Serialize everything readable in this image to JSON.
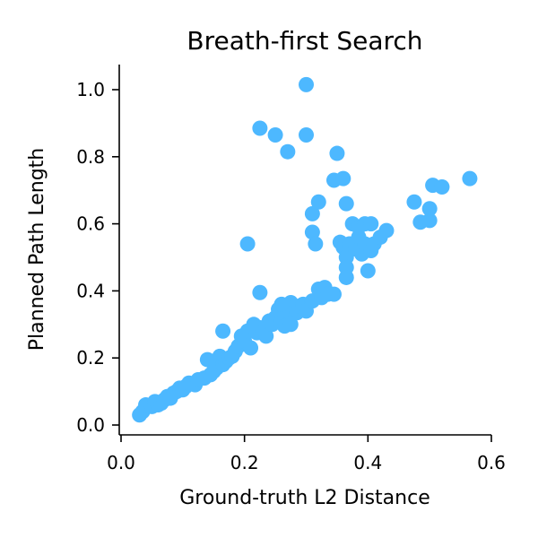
{
  "chart_data": {
    "type": "scatter",
    "title": "Breath-first Search",
    "xlabel": "Ground-truth L2 Distance",
    "ylabel": "Planned Path Length",
    "xlim": [
      0.0,
      0.6
    ],
    "ylim": [
      0.0,
      1.05
    ],
    "xticks": [
      "0.0",
      "0.2",
      "0.4",
      "0.6"
    ],
    "xtick_values": [
      0.0,
      0.2,
      0.4,
      0.6
    ],
    "yticks": [
      "0.0",
      "0.2",
      "0.4",
      "0.6",
      "0.8",
      "1.0"
    ],
    "ytick_values": [
      0.0,
      0.2,
      0.4,
      0.6,
      0.8,
      1.0
    ],
    "grid": false,
    "marker_color": "#4db8ff",
    "points": [
      [
        0.03,
        0.03
      ],
      [
        0.035,
        0.04
      ],
      [
        0.04,
        0.06
      ],
      [
        0.05,
        0.055
      ],
      [
        0.055,
        0.07
      ],
      [
        0.06,
        0.06
      ],
      [
        0.065,
        0.065
      ],
      [
        0.07,
        0.075
      ],
      [
        0.075,
        0.085
      ],
      [
        0.08,
        0.08
      ],
      [
        0.085,
        0.095
      ],
      [
        0.09,
        0.1
      ],
      [
        0.095,
        0.11
      ],
      [
        0.1,
        0.105
      ],
      [
        0.105,
        0.115
      ],
      [
        0.11,
        0.125
      ],
      [
        0.12,
        0.12
      ],
      [
        0.125,
        0.135
      ],
      [
        0.135,
        0.14
      ],
      [
        0.14,
        0.195
      ],
      [
        0.145,
        0.15
      ],
      [
        0.15,
        0.16
      ],
      [
        0.155,
        0.17
      ],
      [
        0.16,
        0.205
      ],
      [
        0.165,
        0.18
      ],
      [
        0.17,
        0.19
      ],
      [
        0.175,
        0.2
      ],
      [
        0.18,
        0.205
      ],
      [
        0.185,
        0.22
      ],
      [
        0.19,
        0.235
      ],
      [
        0.195,
        0.265
      ],
      [
        0.2,
        0.25
      ],
      [
        0.205,
        0.28
      ],
      [
        0.21,
        0.23
      ],
      [
        0.215,
        0.3
      ],
      [
        0.22,
        0.275
      ],
      [
        0.225,
        0.29
      ],
      [
        0.23,
        0.28
      ],
      [
        0.235,
        0.265
      ],
      [
        0.24,
        0.31
      ],
      [
        0.245,
        0.3
      ],
      [
        0.25,
        0.32
      ],
      [
        0.255,
        0.345
      ],
      [
        0.26,
        0.31
      ],
      [
        0.265,
        0.33
      ],
      [
        0.27,
        0.34
      ],
      [
        0.275,
        0.365
      ],
      [
        0.28,
        0.35
      ],
      [
        0.285,
        0.335
      ],
      [
        0.29,
        0.355
      ],
      [
        0.295,
        0.36
      ],
      [
        0.3,
        0.34
      ],
      [
        0.26,
        0.36
      ],
      [
        0.265,
        0.295
      ],
      [
        0.275,
        0.3
      ],
      [
        0.31,
        0.37
      ],
      [
        0.32,
        0.405
      ],
      [
        0.325,
        0.38
      ],
      [
        0.33,
        0.41
      ],
      [
        0.335,
        0.39
      ],
      [
        0.345,
        0.39
      ],
      [
        0.165,
        0.28
      ],
      [
        0.225,
        0.395
      ],
      [
        0.205,
        0.54
      ],
      [
        0.31,
        0.575
      ],
      [
        0.315,
        0.54
      ],
      [
        0.31,
        0.63
      ],
      [
        0.32,
        0.665
      ],
      [
        0.345,
        0.73
      ],
      [
        0.355,
        0.545
      ],
      [
        0.36,
        0.53
      ],
      [
        0.365,
        0.5
      ],
      [
        0.365,
        0.47
      ],
      [
        0.365,
        0.44
      ],
      [
        0.37,
        0.54
      ],
      [
        0.375,
        0.6
      ],
      [
        0.38,
        0.525
      ],
      [
        0.385,
        0.56
      ],
      [
        0.39,
        0.51
      ],
      [
        0.395,
        0.54
      ],
      [
        0.4,
        0.46
      ],
      [
        0.405,
        0.52
      ],
      [
        0.41,
        0.54
      ],
      [
        0.385,
        0.59
      ],
      [
        0.395,
        0.6
      ],
      [
        0.405,
        0.6
      ],
      [
        0.42,
        0.56
      ],
      [
        0.43,
        0.58
      ],
      [
        0.36,
        0.735
      ],
      [
        0.365,
        0.66
      ],
      [
        0.35,
        0.81
      ],
      [
        0.27,
        0.815
      ],
      [
        0.225,
        0.885
      ],
      [
        0.25,
        0.865
      ],
      [
        0.3,
        0.865
      ],
      [
        0.3,
        1.015
      ],
      [
        0.475,
        0.665
      ],
      [
        0.485,
        0.605
      ],
      [
        0.5,
        0.61
      ],
      [
        0.5,
        0.645
      ],
      [
        0.505,
        0.715
      ],
      [
        0.52,
        0.71
      ],
      [
        0.565,
        0.735
      ]
    ]
  }
}
